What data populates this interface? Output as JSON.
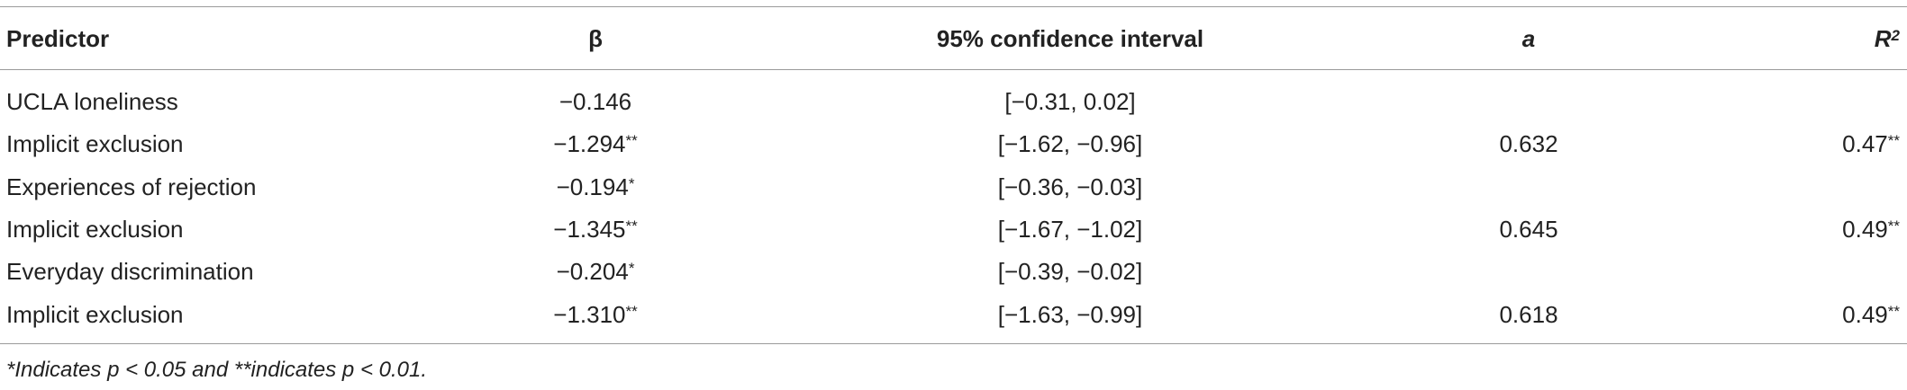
{
  "table": {
    "header": [
      "Predictor",
      "β",
      "95% confidence interval",
      "a",
      {
        "text": "R",
        "sup": "2"
      }
    ],
    "rows": [
      [
        "UCLA loneliness",
        {
          "text": "−0.146"
        },
        "[−0.31, 0.02]",
        null,
        null
      ],
      [
        "Implicit exclusion",
        {
          "text": "−1.294",
          "sup": "**"
        },
        "[−1.62, −0.96]",
        "0.632",
        {
          "text": "0.47",
          "sup": "**"
        }
      ],
      [
        "Experiences of rejection",
        {
          "text": "−0.194",
          "sup": "*"
        },
        "[−0.36, −0.03]",
        null,
        null
      ],
      [
        "Implicit exclusion",
        {
          "text": "−1.345",
          "sup": "**"
        },
        "[−1.67, −1.02]",
        "0.645",
        {
          "text": "0.49",
          "sup": "**"
        }
      ],
      [
        "Everyday discrimination",
        {
          "text": "−0.204",
          "sup": "*"
        },
        "[−0.39, −0.02]",
        null,
        null
      ],
      [
        "Implicit exclusion",
        {
          "text": "−1.310",
          "sup": "**"
        },
        "[−1.63, −0.99]",
        "0.618",
        {
          "text": "0.49",
          "sup": "**"
        }
      ]
    ],
    "footnote": "*Indicates p < 0.05 and **indicates p < 0.01."
  }
}
